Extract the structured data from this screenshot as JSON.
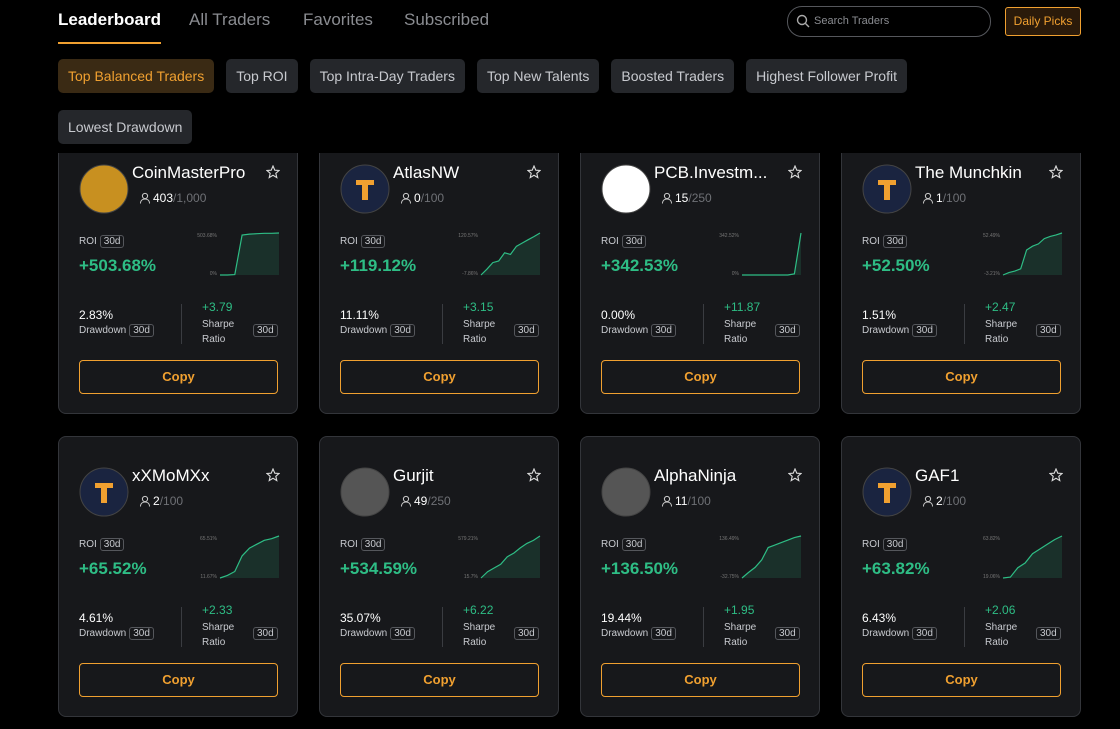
{
  "tabs": [
    "Leaderboard",
    "All Traders",
    "Favorites",
    "Subscribed"
  ],
  "search_placeholder": "Search Traders",
  "daily_picks": "Daily Picks",
  "filters": [
    "Top Balanced Traders",
    "Top ROI",
    "Top Intra-Day Traders",
    "Top New Talents",
    "Boosted Traders",
    "Highest Follower Profit",
    "Lowest Drawdown"
  ],
  "labels": {
    "roi": "ROI",
    "period": "30d",
    "drawdown": "Drawdown",
    "sharpe": "Sharpe Ratio",
    "copy": "Copy"
  },
  "traders": [
    {
      "name": "CoinMasterPro",
      "followers": "403",
      "capacity": "/1,000",
      "roi": "+503.68%",
      "chart_max": "503.68%",
      "chart_min": "0%",
      "drawdown": "2.83%",
      "sharpe": "+3.79",
      "history": [
        0,
        0,
        5,
        480,
        490,
        495,
        500,
        500,
        503.68
      ]
    },
    {
      "name": "AtlasNW",
      "followers": "0",
      "capacity": "/100",
      "roi": "+119.12%",
      "chart_max": "120.57%",
      "chart_min": "-7.86%",
      "drawdown": "11.11%",
      "sharpe": "+3.15",
      "history": [
        -7.86,
        10,
        30,
        35,
        60,
        55,
        80,
        90,
        100,
        110,
        120.57
      ]
    },
    {
      "name": "PCB.Investm...",
      "followers": "15",
      "capacity": "/250",
      "roi": "+342.53%",
      "chart_max": "342.52%",
      "chart_min": "0%",
      "drawdown": "0.00%",
      "sharpe": "+11.87",
      "history": [
        0,
        0,
        0,
        0,
        0,
        0,
        0,
        0,
        10,
        342.52
      ]
    },
    {
      "name": "The Munchkin",
      "followers": "1",
      "capacity": "/100",
      "roi": "+52.50%",
      "chart_max": "52.49%",
      "chart_min": "-3.21%",
      "drawdown": "1.51%",
      "sharpe": "+2.47",
      "history": [
        -3.21,
        0,
        2,
        5,
        30,
        35,
        38,
        45,
        48,
        50,
        52.49
      ]
    },
    {
      "name": "xXMoMXx",
      "followers": "2",
      "capacity": "/100",
      "roi": "+65.52%",
      "chart_max": "65.51%",
      "chart_min": "11.67%",
      "drawdown": "4.61%",
      "sharpe": "+2.33",
      "history": [
        11.67,
        15,
        20,
        40,
        50,
        55,
        60,
        62,
        65.51
      ]
    },
    {
      "name": "Gurjit",
      "followers": "49",
      "capacity": "/250",
      "roi": "+534.59%",
      "chart_max": "579.21%",
      "chart_min": "15.7%",
      "drawdown": "35.07%",
      "sharpe": "+6.22",
      "history": [
        15.7,
        100,
        150,
        200,
        300,
        350,
        420,
        480,
        520,
        579.21
      ]
    },
    {
      "name": "AlphaNinja",
      "followers": "11",
      "capacity": "/100",
      "roi": "+136.50%",
      "chart_max": "136.49%",
      "chart_min": "-32.75%",
      "drawdown": "19.44%",
      "sharpe": "+1.95",
      "history": [
        -32.75,
        -10,
        10,
        40,
        90,
        100,
        110,
        120,
        130,
        136.49
      ]
    },
    {
      "name": "GAF1",
      "followers": "2",
      "capacity": "/100",
      "roi": "+63.82%",
      "chart_max": "63.82%",
      "chart_min": "19.06%",
      "drawdown": "6.43%",
      "sharpe": "+2.06",
      "history": [
        19.06,
        20,
        30,
        35,
        45,
        50,
        55,
        60,
        63.82
      ]
    }
  ]
}
